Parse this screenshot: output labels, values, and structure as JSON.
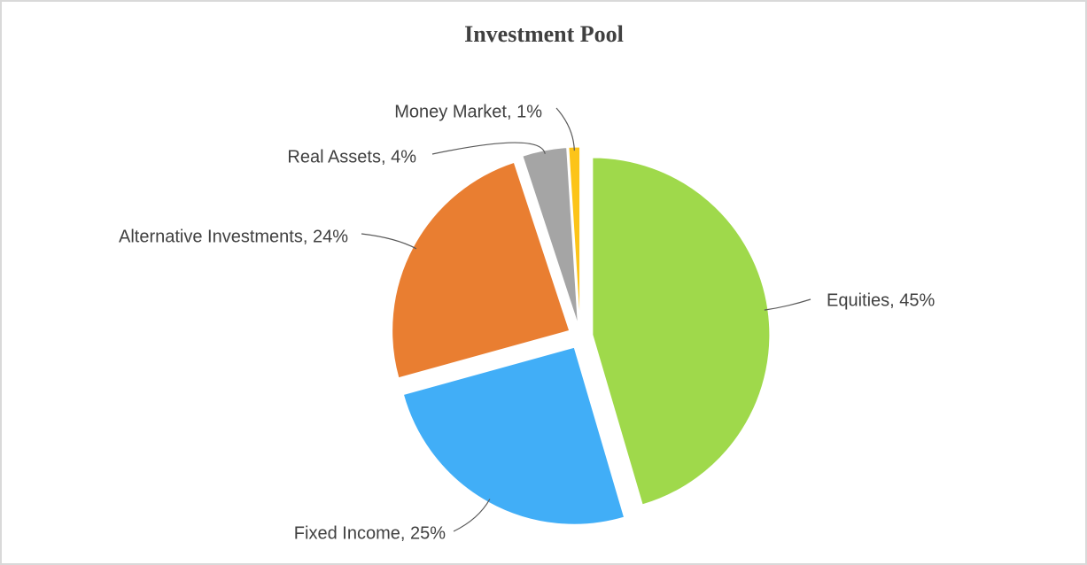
{
  "chart_data": {
    "type": "pie",
    "title": "Investment Pool",
    "values": [
      45,
      25,
      24,
      4,
      1
    ],
    "value_labels": [
      "Equities, 45%",
      "Fixed Income, 25%",
      "Alternative Investments, 24%",
      "Real Assets, 4%",
      "Money Market, 1%"
    ],
    "colors": [
      "#9fd94b",
      "#41aef7",
      "#e97e31",
      "#a5a5a5",
      "#fcc419"
    ]
  }
}
